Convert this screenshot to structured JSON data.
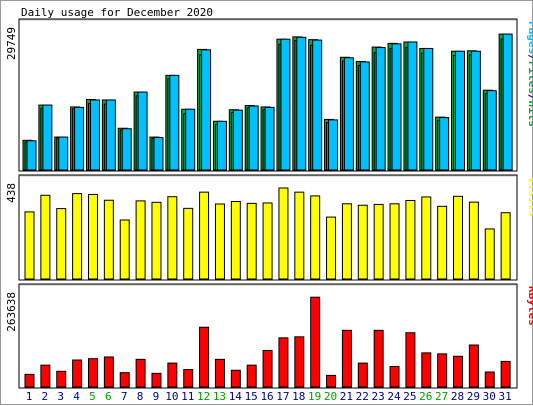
{
  "title": "Daily usage for December 2020",
  "chart_data": {
    "type": "bar",
    "title": "Daily usage for December 2020",
    "categories": [
      "1",
      "2",
      "3",
      "4",
      "5",
      "6",
      "7",
      "8",
      "9",
      "10",
      "11",
      "12",
      "13",
      "14",
      "15",
      "16",
      "17",
      "18",
      "19",
      "20",
      "21",
      "22",
      "23",
      "24",
      "25",
      "26",
      "27",
      "28",
      "29",
      "30",
      "31"
    ],
    "weekend_days": [
      "5",
      "6",
      "12",
      "13",
      "19",
      "20",
      "26",
      "27"
    ],
    "colors": {
      "hits": "#00aa44",
      "files": "#1a9a5a",
      "pages": "#00c0ff",
      "visits": "#ffff00",
      "kbytes": "#ff0000",
      "weekday_label": "#000080",
      "weekend_label": "#00a000"
    },
    "panels": [
      {
        "name": "pages-files-hits",
        "ymax_label": "29749",
        "ylim": [
          0,
          29749
        ],
        "legend": [
          {
            "text": "Pages",
            "color": "#00c0ff"
          },
          {
            "text": "/",
            "color": "#000080"
          },
          {
            "text": "Files",
            "color": "#1a9a5a"
          },
          {
            "text": "/",
            "color": "#000080"
          },
          {
            "text": "Hits",
            "color": "#00aa44"
          }
        ],
        "series": [
          {
            "name": "Hits",
            "values": [
              6400,
              14000,
              7100,
              13600,
              15200,
              15100,
              9000,
              16800,
              7100,
              20400,
              13100,
              26000,
              10500,
              13000,
              13900,
              13600,
              28200,
              28700,
              28100,
              10900,
              24300,
              23400,
              26500,
              27300,
              27600,
              26200,
              11400,
              25600,
              25700,
              17200,
              29300
            ]
          },
          {
            "name": "Files",
            "values": [
              6000,
              13300,
              6900,
              13200,
              14300,
              14200,
              8600,
              16000,
              6800,
              19700,
              12100,
              24800,
              9800,
              12400,
              13400,
              13000,
              27100,
              27900,
              26900,
              10200,
              23500,
              22500,
              25300,
              26200,
              26400,
              25200,
              10700,
              24700,
              24800,
              16500,
              28200
            ]
          },
          {
            "name": "Pages",
            "values": [
              6300,
              14000,
              7100,
              13500,
              15100,
              15100,
              8900,
              16800,
              7000,
              20400,
              13100,
              25900,
              10500,
              12900,
              13800,
              13500,
              28200,
              28600,
              28000,
              10800,
              24200,
              23300,
              26400,
              27200,
              27600,
              26200,
              11300,
              25600,
              25600,
              17100,
              29300
            ]
          }
        ]
      },
      {
        "name": "visits",
        "ymax_label": "438",
        "ylim": [
          0,
          438
        ],
        "legend": [
          {
            "text": "Visits",
            "color": "#ffff00"
          }
        ],
        "series": [
          {
            "name": "Visits",
            "values": [
              323,
              403,
              339,
              411,
              407,
              379,
              284,
              376,
              369,
              396,
              340,
              418,
              361,
              373,
              364,
              366,
              438,
              418,
              400,
              298,
              362,
              355,
              359,
              362,
              378,
              395,
              350,
              398,
              370,
              241,
              319
            ]
          }
        ]
      },
      {
        "name": "kbytes",
        "ymax_label": "263638",
        "ylim": [
          0,
          263638
        ],
        "legend": [
          {
            "text": "KBytes",
            "color": "#ff0000"
          }
        ],
        "series": [
          {
            "name": "KBytes",
            "values": [
              37000,
              64000,
              46000,
              79000,
              83000,
              88000,
              42000,
              81000,
              40000,
              70000,
              51000,
              175000,
              81000,
              49000,
              64000,
              107000,
              144000,
              147000,
              263000,
              34000,
              166000,
              70000,
              166000,
              60000,
              159000,
              100000,
              97000,
              90000,
              123000,
              44000,
              75000
            ]
          }
        ]
      }
    ]
  }
}
